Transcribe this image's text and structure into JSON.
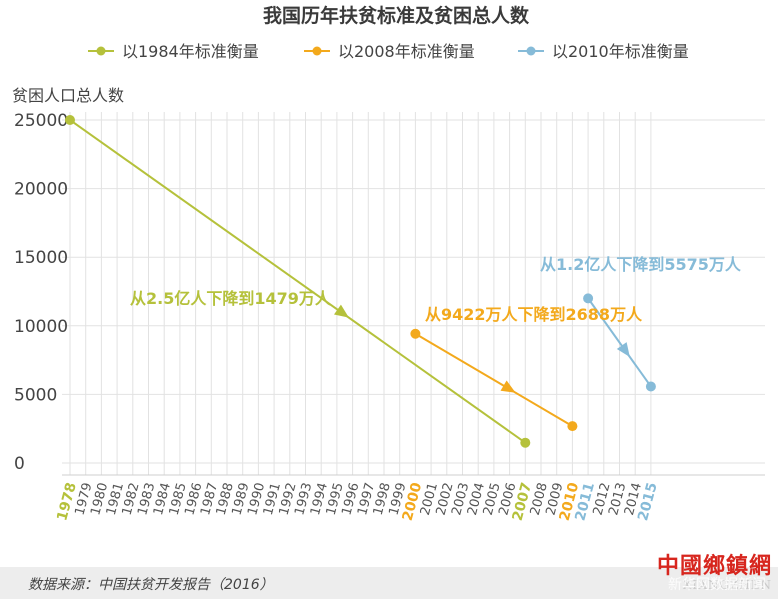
{
  "chart_data": {
    "type": "line",
    "title": "我国历年扶贫标准及贫困总人数",
    "ylabel": "贫困人口总人数",
    "ylim": [
      0,
      25000
    ],
    "yticks": [
      "25000",
      "20000",
      "15000",
      "10000",
      "5000",
      "0"
    ],
    "ytick_values": [
      25000,
      20000,
      15000,
      10000,
      5000,
      0
    ],
    "grid": true,
    "legend_position": "top",
    "x": [
      "1978",
      "1979",
      "1980",
      "1981",
      "1982",
      "1983",
      "1984",
      "1985",
      "1986",
      "1987",
      "1988",
      "1989",
      "1990",
      "1991",
      "1992",
      "1993",
      "1994",
      "1995",
      "1996",
      "1997",
      "1998",
      "1999",
      "2000",
      "2001",
      "2002",
      "2003",
      "2004",
      "2005",
      "2006",
      "2007",
      "2008",
      "2009",
      "2010",
      "2011",
      "2012",
      "2013",
      "2014",
      "2015"
    ],
    "highlighted_ticks": {
      "1978": "#b5c13b",
      "2007": "#b5c13b",
      "2000": "#f3a91c",
      "2010": "#f3a91c",
      "2011": "#86bbd8",
      "2015": "#86bbd8"
    },
    "series": [
      {
        "name": "以1984年标准衡量",
        "color": "#b5c13b",
        "points": [
          [
            "1978",
            25000
          ],
          [
            "2007",
            1479
          ]
        ],
        "annotation": "从2.5亿人下降到1479万人"
      },
      {
        "name": "以2008年标准衡量",
        "color": "#f3a91c",
        "points": [
          [
            "2000",
            9422
          ],
          [
            "2010",
            2688
          ]
        ],
        "annotation": "从9422万人下降到2688万人"
      },
      {
        "name": "以2010年标准衡量",
        "color": "#86bbd8",
        "points": [
          [
            "2011",
            12000
          ],
          [
            "2015",
            5575
          ]
        ],
        "annotation": "从1.2亿人下降到5575万人"
      }
    ]
  },
  "footer": {
    "source": "数据来源：中国扶贫开发报告（2016）",
    "logo_cn": "中國鄉鎮網",
    "logo_en": "XIANGZHEN",
    "watermark": "新华网数据新闻"
  }
}
